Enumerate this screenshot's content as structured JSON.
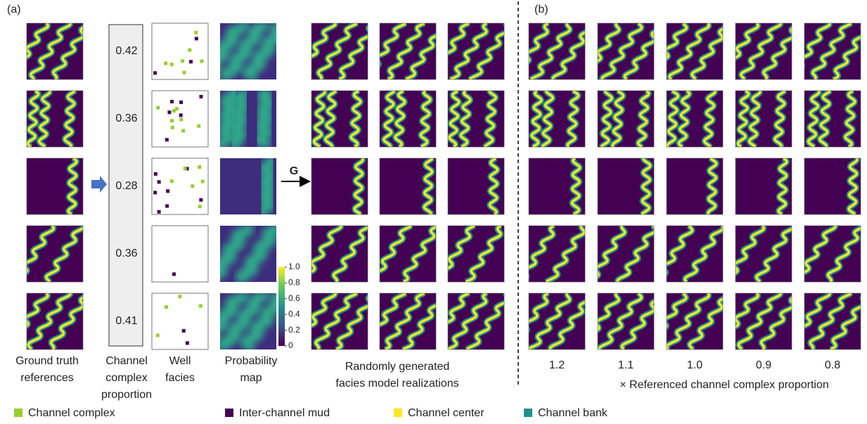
{
  "panel_a": {
    "label": "(a)",
    "proportions": [
      0.42,
      0.36,
      0.28,
      0.36,
      0.41
    ],
    "generator": "G",
    "captions": {
      "ground_truth": [
        "Ground truth",
        "references"
      ],
      "proportion": [
        "Channel",
        "complex",
        "proportion"
      ],
      "well": [
        "Well",
        "facies"
      ],
      "probability": [
        "Probability",
        "map"
      ],
      "generated": [
        "Randomly generated",
        "facies model realizations"
      ]
    },
    "colorbar": {
      "ticks": [
        0,
        0.2,
        0.4,
        0.6,
        0.8,
        {
          "value": 1,
          "label": "1.0"
        }
      ],
      "lim": [
        0,
        1
      ]
    }
  },
  "panel_b": {
    "label": "(b)",
    "factors": [
      1.2,
      1.1,
      {
        "value": 1,
        "label": "1.0"
      },
      0.9,
      0.8
    ],
    "x_label": "× Referenced channel complex proportion"
  },
  "legend": [
    {
      "name": "Channel complex",
      "color": "#9acd32"
    },
    {
      "name": "Inter-channel mud",
      "color": "#440154"
    },
    {
      "name": "Channel center",
      "color": "#fde725"
    },
    {
      "name": "Channel bank",
      "color": "#21918c"
    }
  ]
}
